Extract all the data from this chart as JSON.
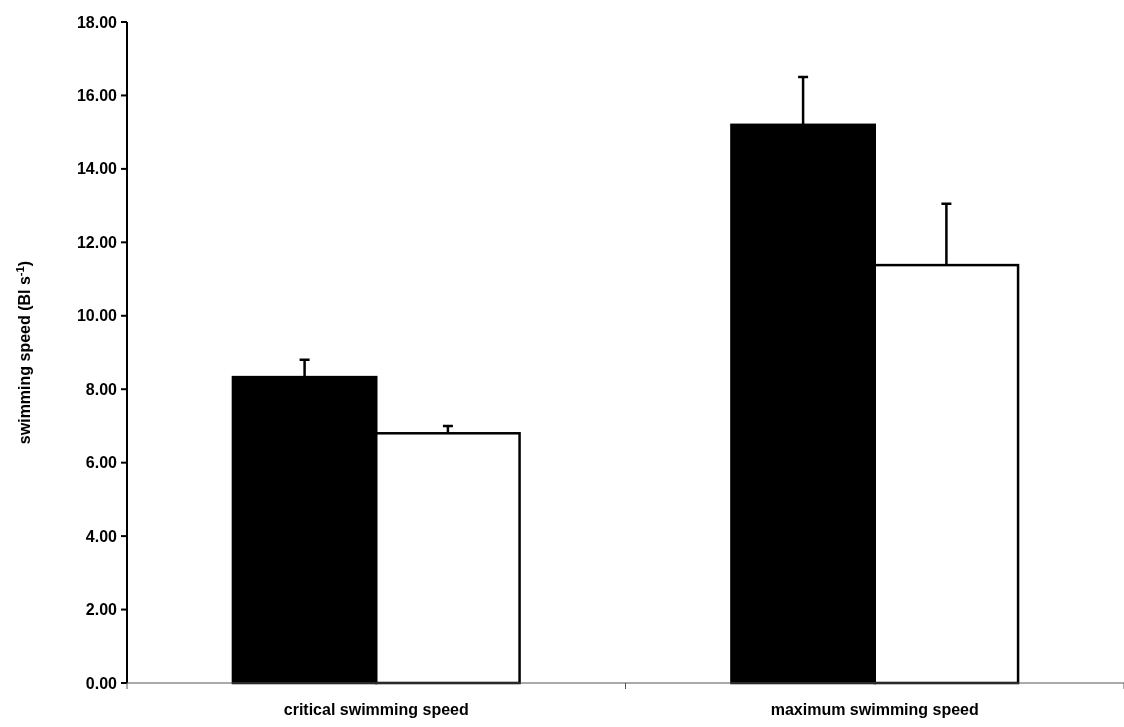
{
  "chart_data": {
    "type": "bar",
    "ylabel": "swimming speed (Bl s$^{-1}$)",
    "categories": [
      "critical swimming speed",
      "maximum swimming speed"
    ],
    "series": [
      {
        "color": "#000000",
        "values": [
          8.33,
          15.2
        ],
        "errors": [
          [
            8.33,
            8.8
          ],
          [
            15.2,
            16.5
          ]
        ]
      },
      {
        "color": "#ffffff",
        "values": [
          6.8,
          11.38
        ],
        "errors": [
          [
            6.8,
            7.0
          ],
          [
            11.38,
            13.05
          ]
        ]
      }
    ],
    "ylim": [
      0,
      18
    ],
    "yticks": [
      {
        "value": 0,
        "label": "0.00"
      },
      {
        "value": 2,
        "label": "2.00"
      },
      {
        "value": 4,
        "label": "4.00"
      },
      {
        "value": 6,
        "label": "6.00"
      },
      {
        "value": 8,
        "label": "8.00"
      },
      {
        "value": 10,
        "label": "10.00"
      },
      {
        "value": 12,
        "label": "12.00"
      },
      {
        "value": 14,
        "label": "14.00"
      },
      {
        "value": 16,
        "label": "16.00"
      },
      {
        "value": 18,
        "label": "18.00"
      }
    ],
    "grid": false
  }
}
